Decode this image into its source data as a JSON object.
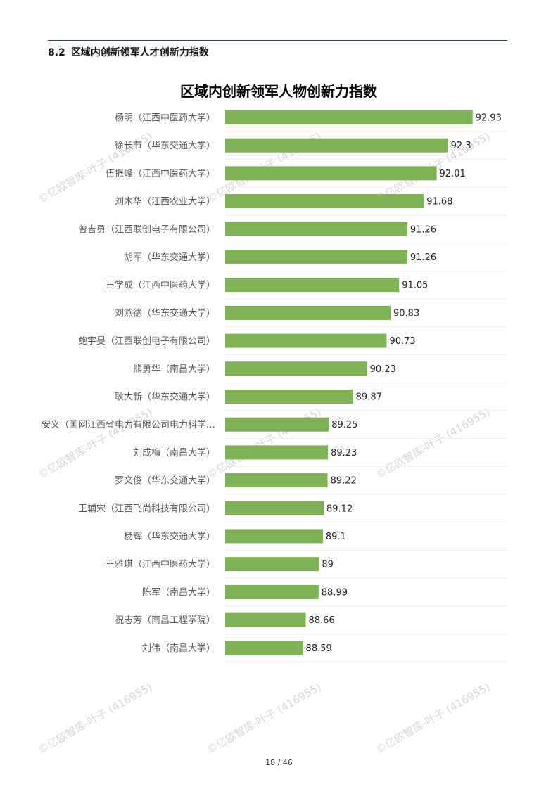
{
  "header": {
    "section_number": "8.2",
    "section_title": "区域内创新领军人才创新力指数"
  },
  "watermark": {
    "text": "©亿欧智库-叶子 (416955)"
  },
  "chart_data": {
    "type": "bar",
    "orientation": "horizontal",
    "title": "区域内创新领军人物创新力指数",
    "xlabel": "",
    "ylabel": "",
    "categories": [
      "杨明（江西中医药大学）",
      "徐长节（华东交通大学）",
      "伍振峰（江西中医药大学）",
      "刘木华（江西农业大学）",
      "曾吉勇（江西联创电子有限公司）",
      "胡军（华东交通大学）",
      "王学成（江西中医药大学）",
      "刘燕德（华东交通大学）",
      "鲍宇旻（江西联创电子有限公司）",
      "熊勇华（南昌大学）",
      "耿大新（华东交通大学）",
      "安义（国网江西省电力有限公司电力科学…",
      "刘成梅（南昌大学）",
      "罗文俊（华东交通大学）",
      "王辅宋（江西飞尚科技有限公司）",
      "杨辉（华东交通大学）",
      "王雅琪（江西中医药大学）",
      "陈军（南昌大学）",
      "祝志芳（南昌工程学院）",
      "刘伟（南昌大学）"
    ],
    "values": [
      92.93,
      92.3,
      92.01,
      91.68,
      91.26,
      91.26,
      91.05,
      90.83,
      90.73,
      90.23,
      89.87,
      89.25,
      89.23,
      89.22,
      89.12,
      89.1,
      89,
      88.99,
      88.66,
      88.59
    ],
    "value_labels": [
      "92.93",
      "92.3",
      "92.01",
      "91.68",
      "91.26",
      "91.26",
      "91.05",
      "90.83",
      "90.73",
      "90.23",
      "89.87",
      "89.25",
      "89.23",
      "89.22",
      "89.12",
      "89.1",
      "89",
      "88.99",
      "88.66",
      "88.59"
    ],
    "xlim": [
      86.6,
      93.8
    ],
    "bar_color": "#7fb157",
    "grid": false,
    "legend": "none"
  },
  "footer": {
    "page_current": "18",
    "page_separator": "/",
    "page_total": "46"
  }
}
